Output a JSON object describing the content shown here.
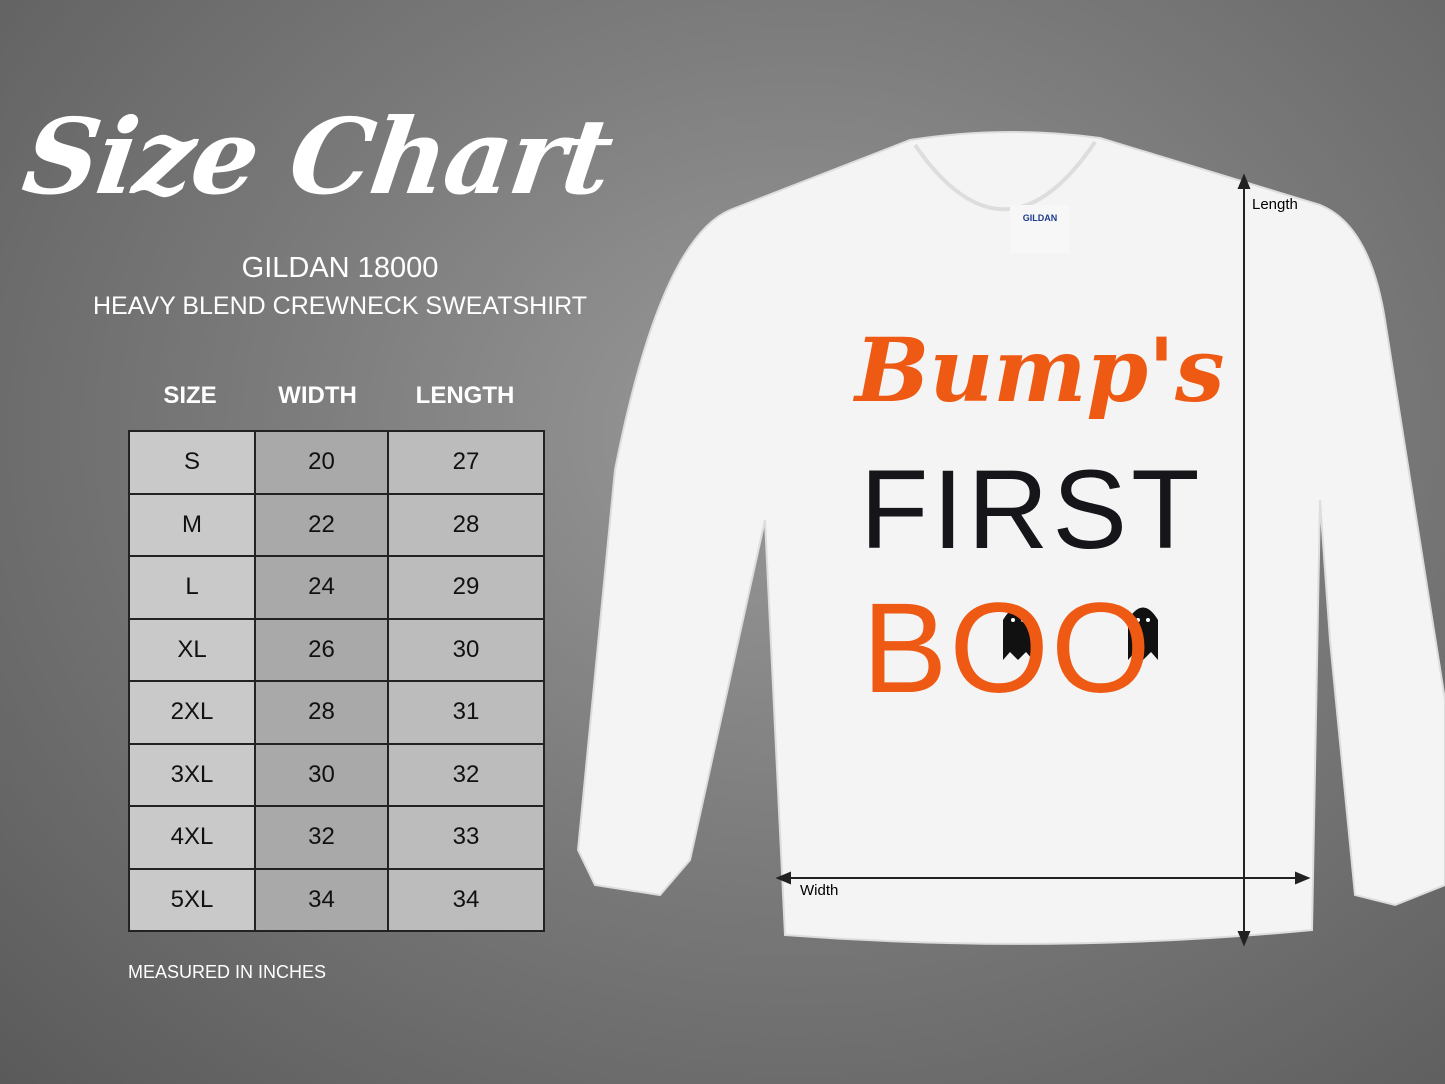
{
  "header": {
    "title": "Size Chart",
    "model": "GILDAN 18000",
    "description": "HEAVY BLEND CREWNECK SWEATSHIRT"
  },
  "table": {
    "columns": [
      "SIZE",
      "WIDTH",
      "LENGTH"
    ],
    "rows": [
      [
        "S",
        "20",
        "27"
      ],
      [
        "M",
        "22",
        "28"
      ],
      [
        "L",
        "24",
        "29"
      ],
      [
        "XL",
        "26",
        "30"
      ],
      [
        "2XL",
        "28",
        "31"
      ],
      [
        "3XL",
        "30",
        "32"
      ],
      [
        "4XL",
        "32",
        "33"
      ],
      [
        "5XL",
        "34",
        "34"
      ]
    ],
    "note": "MEASURED IN INCHES"
  },
  "shirt": {
    "tag_brand": "GILDAN",
    "design_line1": "Bump's",
    "design_line2": "FIRST",
    "design_line3": "BOO",
    "length_label": "Length",
    "width_label": "Width",
    "colors": {
      "orange": "#ee5a14",
      "black": "#15151a",
      "shirt": "#f4f4f4"
    }
  }
}
